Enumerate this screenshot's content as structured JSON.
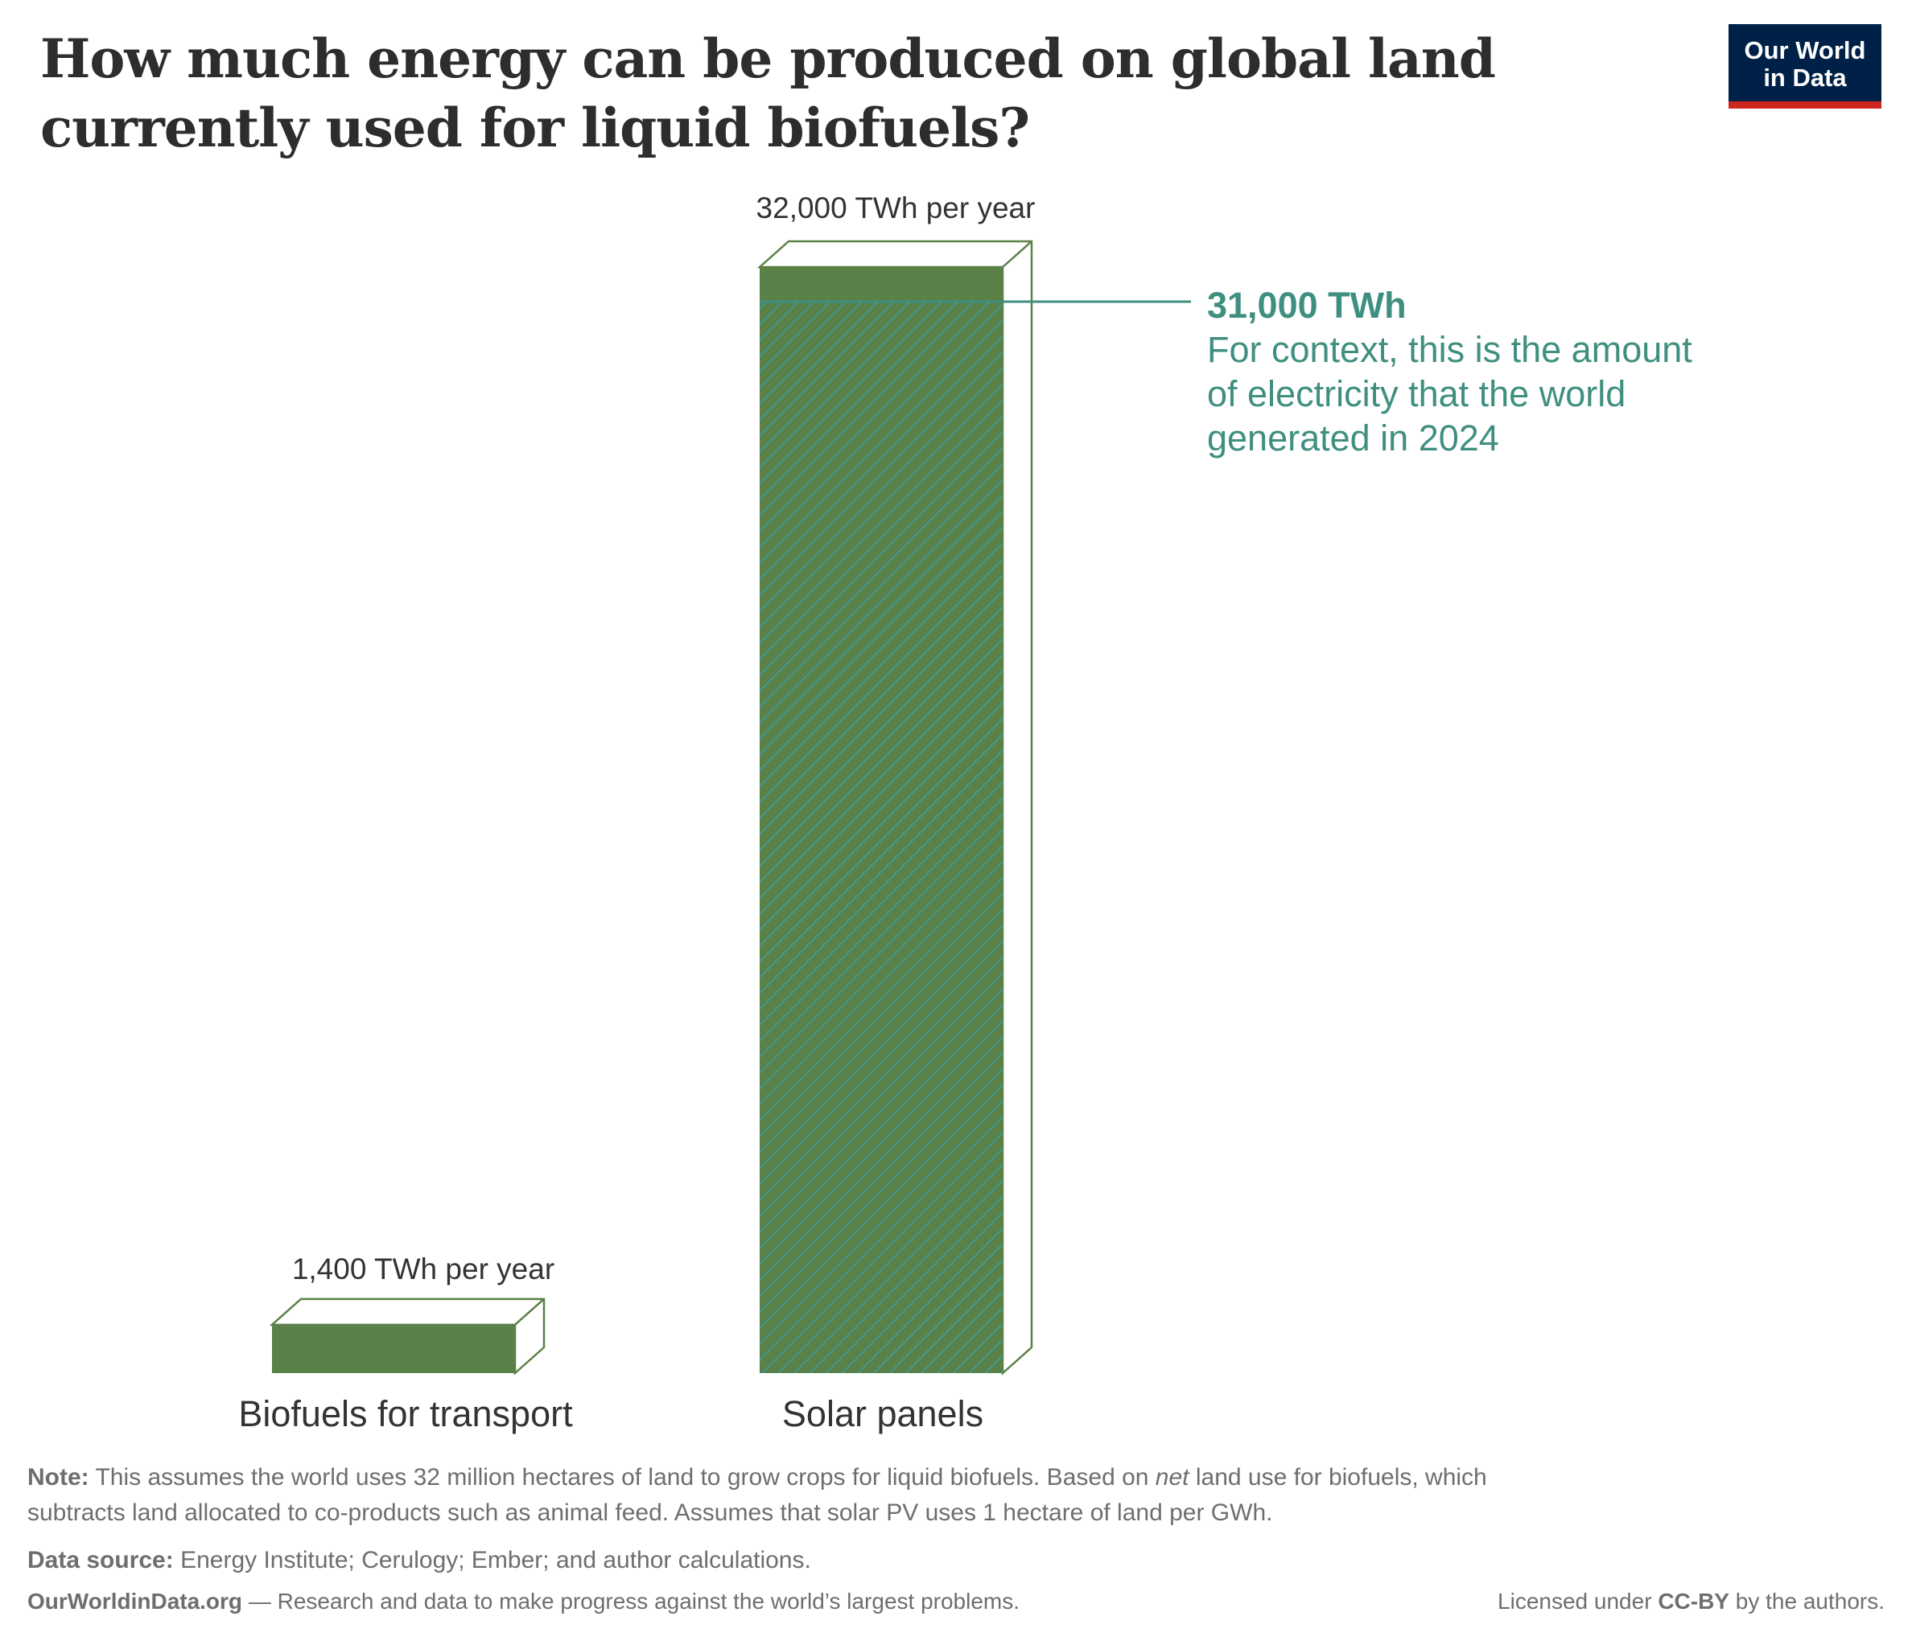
{
  "title": "How much energy can be produced on global land currently used for liquid biofuels?",
  "logo": {
    "line1": "Our World",
    "line2": "in Data"
  },
  "chart_data": {
    "type": "bar",
    "title": "How much energy can be produced on global land currently used for liquid biofuels?",
    "categories": [
      "Biofuels for transport",
      "Solar panels"
    ],
    "values": [
      1400,
      32000
    ],
    "unit": "TWh per year",
    "value_labels": [
      "1,400 TWh per year",
      "32,000 TWh per year"
    ],
    "ylim": [
      0,
      32000
    ],
    "grid": false,
    "annotation": {
      "value": 31000,
      "label": "31,000 TWh",
      "text": "For context, this is the amount of electricity that the world generated in 2024",
      "text_lines": [
        "For context, this is the amount",
        "of electricity that the world",
        "generated in 2024"
      ]
    },
    "colors": {
      "bar": "#5a8147",
      "hatch": "#3a9fa8",
      "annotation": "#3f8f80"
    }
  },
  "note": {
    "label": "Note:",
    "line1_pre": "This assumes the world uses 32 million hectares of land to grow crops for liquid biofuels. Based on ",
    "line1_em": "net",
    "line1_post": " land use for biofuels, which",
    "line2": "subtracts land allocated to co-products such as animal feed. Assumes that solar PV uses 1 hectare of land per GWh."
  },
  "source": {
    "label": "Data source:",
    "text": "Energy Institute; Cerulogy; Ember; and author calculations."
  },
  "footer": {
    "site": "OurWorldinData.org",
    "tagline": " — Research and data to make progress against the world’s largest problems.",
    "license_pre": "Licensed under ",
    "license": "CC-BY",
    "license_post": " by the authors."
  }
}
